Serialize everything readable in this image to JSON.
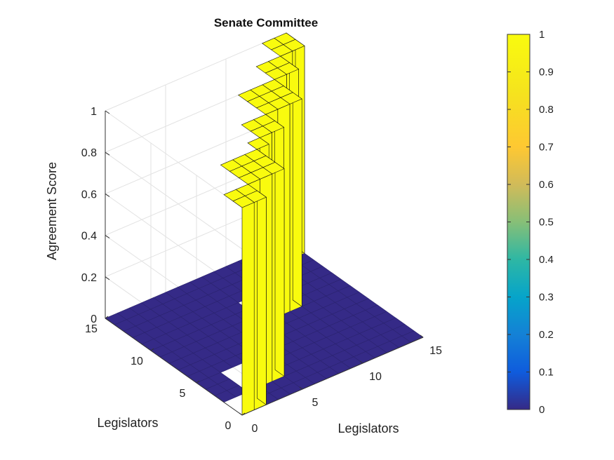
{
  "chart_data": {
    "type": "surface3d",
    "title": "Senate Committee",
    "xlabel": "Legislators",
    "ylabel": "Legislators",
    "zlabel": "Agreement Score",
    "xlim": [
      0,
      15
    ],
    "ylim": [
      0,
      15
    ],
    "zlim": [
      0,
      1
    ],
    "x_ticks": [
      "0",
      "5",
      "10",
      "15"
    ],
    "y_ticks": [
      "0",
      "5",
      "10",
      "15"
    ],
    "z_ticks": [
      "0",
      "0.2",
      "0.4",
      "0.6",
      "0.8",
      "1"
    ],
    "grid": true,
    "colormap": "parula",
    "colorbar": {
      "limits": [
        0,
        1
      ],
      "ticks": [
        "0",
        "0.1",
        "0.2",
        "0.3",
        "0.4",
        "0.5",
        "0.6",
        "0.7",
        "0.8",
        "0.9",
        "1"
      ]
    },
    "grid_size": 15,
    "values_description": "15x15 binary agreement matrix (1 = agree, 0 = disagree) between legislators",
    "values": [
      [
        1,
        1,
        0,
        0,
        0,
        0,
        0,
        0,
        0,
        0,
        0,
        0,
        0,
        0,
        0
      ],
      [
        1,
        1,
        0,
        0,
        0,
        0,
        0,
        0,
        0,
        0,
        0,
        0,
        0,
        0,
        0
      ],
      [
        0,
        0,
        1,
        1,
        1,
        0,
        0,
        0,
        0,
        0,
        0,
        0,
        0,
        0,
        0
      ],
      [
        0,
        0,
        1,
        1,
        1,
        0,
        0,
        0,
        0,
        0,
        0,
        0,
        0,
        0,
        0
      ],
      [
        0,
        0,
        1,
        1,
        1,
        0,
        0,
        0,
        0,
        0,
        0,
        0,
        0,
        0,
        0
      ],
      [
        0,
        0,
        0,
        0,
        0,
        1,
        0,
        0,
        0,
        0,
        0,
        0,
        0,
        0,
        0
      ],
      [
        0,
        0,
        0,
        0,
        0,
        0,
        1,
        1,
        0,
        0,
        0,
        0,
        0,
        0,
        0
      ],
      [
        0,
        0,
        0,
        0,
        0,
        0,
        1,
        1,
        0,
        0,
        0,
        0,
        0,
        0,
        0
      ],
      [
        0,
        0,
        0,
        0,
        0,
        0,
        0,
        0,
        1,
        1,
        1,
        0,
        0,
        0,
        0
      ],
      [
        0,
        0,
        0,
        0,
        0,
        0,
        0,
        0,
        1,
        1,
        1,
        0,
        0,
        0,
        0
      ],
      [
        0,
        0,
        0,
        0,
        0,
        0,
        0,
        0,
        1,
        1,
        1,
        0,
        0,
        0,
        0
      ],
      [
        0,
        0,
        0,
        0,
        0,
        0,
        0,
        0,
        0,
        0,
        0,
        1,
        1,
        0,
        0
      ],
      [
        0,
        0,
        0,
        0,
        0,
        0,
        0,
        0,
        0,
        0,
        0,
        1,
        1,
        0,
        0
      ],
      [
        0,
        0,
        0,
        0,
        0,
        0,
        0,
        0,
        0,
        0,
        0,
        0,
        0,
        1,
        1
      ],
      [
        0,
        0,
        0,
        0,
        0,
        0,
        0,
        0,
        0,
        0,
        0,
        0,
        0,
        1,
        1
      ]
    ],
    "color_low": "#352a87",
    "color_high": "#f9fb0e"
  }
}
